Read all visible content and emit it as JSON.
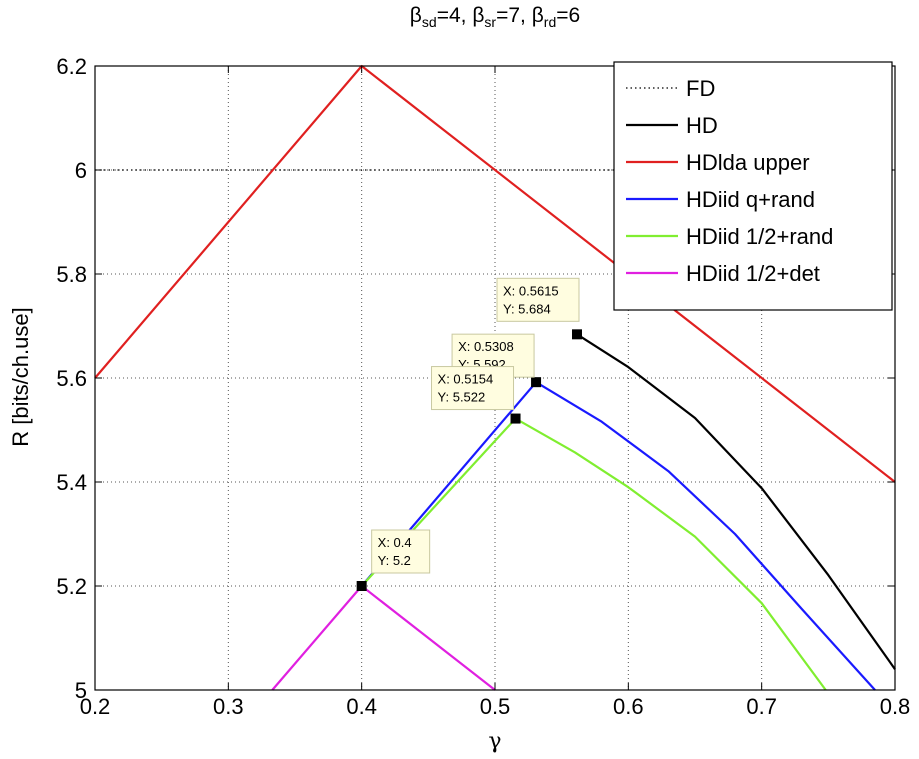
{
  "chart_data": {
    "type": "line",
    "title": {
      "beta_sd": "4",
      "beta_sr": "7",
      "beta_rd": "6"
    },
    "title_symbol": "β",
    "title_subscripts": {
      "sd": "sd",
      "sr": "sr",
      "rd": "rd"
    },
    "xlabel": "γ",
    "ylabel": "R [bits/ch.use]",
    "xlim": [
      0.2,
      0.8
    ],
    "ylim": [
      5.0,
      6.2
    ],
    "xticks": [
      0.2,
      0.3,
      0.4,
      0.5,
      0.6,
      0.7,
      0.8
    ],
    "xtick_labels": [
      "0.2",
      "0.3",
      "0.4",
      "0.5",
      "0.6",
      "0.7",
      "0.8"
    ],
    "yticks": [
      5.0,
      5.2,
      5.4,
      5.6,
      5.8,
      6.0,
      6.2
    ],
    "ytick_labels": [
      "5",
      "5.2",
      "5.4",
      "5.6",
      "5.8",
      "6",
      "6.2"
    ],
    "grid": true,
    "legend_position": "top-right",
    "series": [
      {
        "name": "FD",
        "color": "#000000",
        "style": "dotted",
        "x": [
          0.2,
          0.8
        ],
        "y": [
          6.0,
          6.0
        ]
      },
      {
        "name": "HD",
        "color": "#000000",
        "style": "solid",
        "x": [
          0.5615,
          0.6,
          0.65,
          0.7,
          0.75,
          0.8
        ],
        "y": [
          5.684,
          5.621,
          5.523,
          5.388,
          5.221,
          5.04
        ]
      },
      {
        "name": "HDlda upper",
        "color": "#e02020",
        "style": "solid",
        "x": [
          0.2,
          0.4,
          0.8
        ],
        "y": [
          5.6,
          6.2,
          5.4
        ]
      },
      {
        "name": "HDiid q+rand",
        "color": "#1a1aff",
        "style": "solid",
        "x": [
          0.4,
          0.5308,
          0.58,
          0.63,
          0.68,
          0.73,
          0.785
        ],
        "y": [
          5.2,
          5.592,
          5.516,
          5.421,
          5.3,
          5.156,
          5.0
        ]
      },
      {
        "name": "HDiid 1/2+rand",
        "color": "#80ee30",
        "style": "solid",
        "x": [
          0.4,
          0.5154,
          0.56,
          0.6,
          0.65,
          0.7,
          0.748
        ],
        "y": [
          5.2,
          5.522,
          5.457,
          5.39,
          5.295,
          5.167,
          5.0
        ]
      },
      {
        "name": "HDiid 1/2+det",
        "color": "#e020e0",
        "style": "solid",
        "x": [
          0.333,
          0.4,
          0.5
        ],
        "y": [
          5.0,
          5.2,
          5.0
        ]
      }
    ],
    "annotations": [
      {
        "x_label": "X: 0.5615",
        "y_label": "Y: 5.684",
        "x": 0.5615,
        "y": 5.684
      },
      {
        "x_label": "X: 0.5308",
        "y_label": "Y: 5.592",
        "x": 0.5308,
        "y": 5.592
      },
      {
        "x_label": "X: 0.5154",
        "y_label": "Y: 5.522",
        "x": 0.5154,
        "y": 5.522
      },
      {
        "x_label": "X: 0.4",
        "y_label": "Y: 5.2",
        "x": 0.4,
        "y": 5.2
      }
    ]
  }
}
